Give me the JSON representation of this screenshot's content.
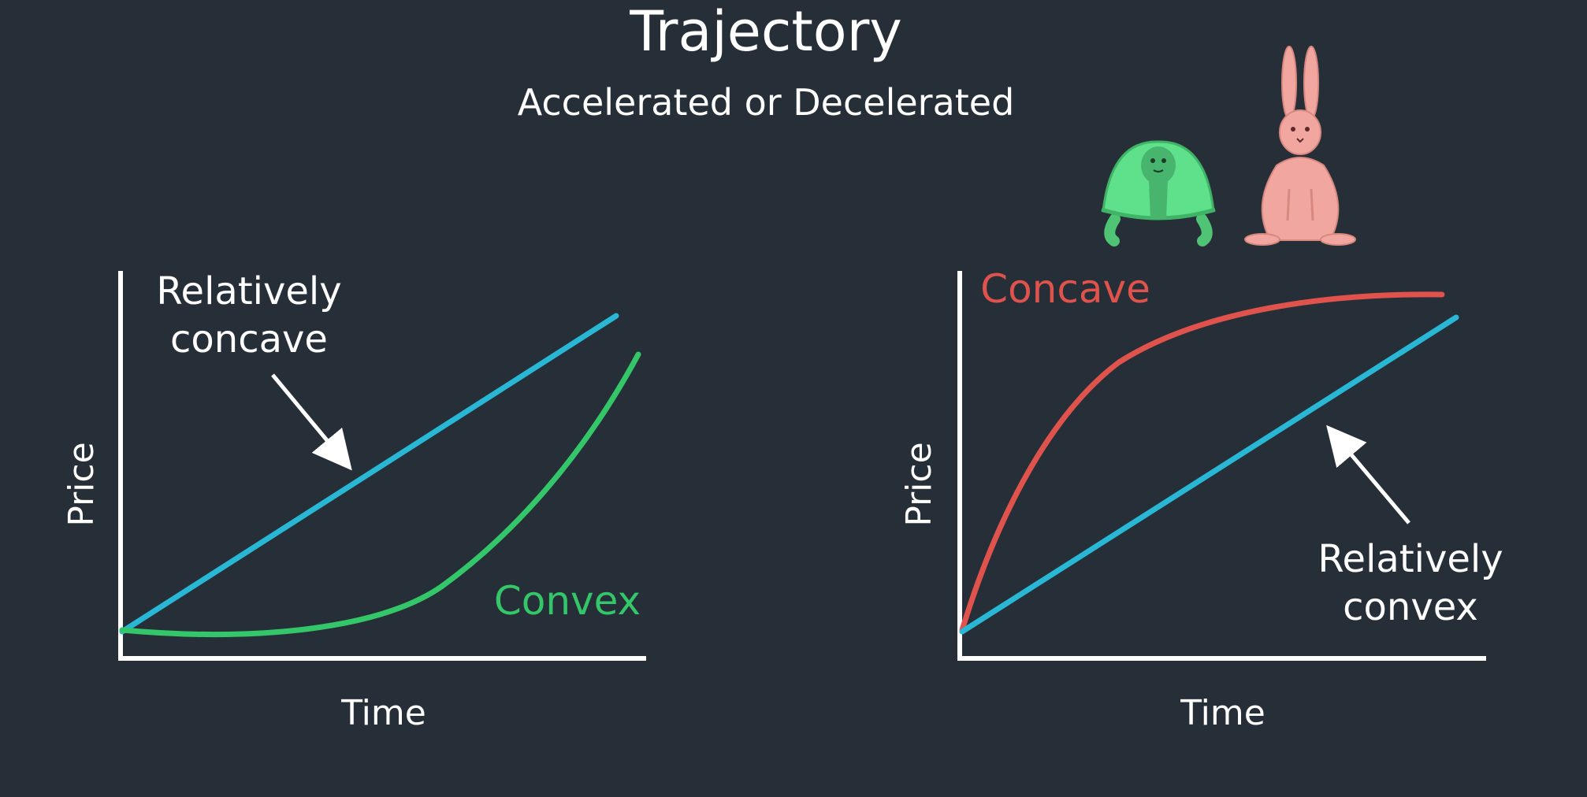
{
  "title": "Trajectory",
  "subtitle": "Accelerated or Decelerated",
  "colors": {
    "background": "#262f38",
    "foreground": "#ffffff",
    "linear": "#29b7d6",
    "convex": "#34c76a",
    "concave": "#e0524c",
    "turtle": "#5fe08a",
    "rabbit": "#f2a6a0"
  },
  "illustrations": {
    "turtle": "turtle-icon",
    "rabbit": "rabbit-icon"
  },
  "left_panel": {
    "y_axis_label": "Price",
    "x_axis_label": "Time",
    "annotation_line1": "Relatively",
    "annotation_line2": "concave",
    "curve_label": "Convex"
  },
  "right_panel": {
    "y_axis_label": "Price",
    "x_axis_label": "Time",
    "annotation_line1": "Relatively",
    "annotation_line2": "convex",
    "curve_label": "Concave"
  }
}
